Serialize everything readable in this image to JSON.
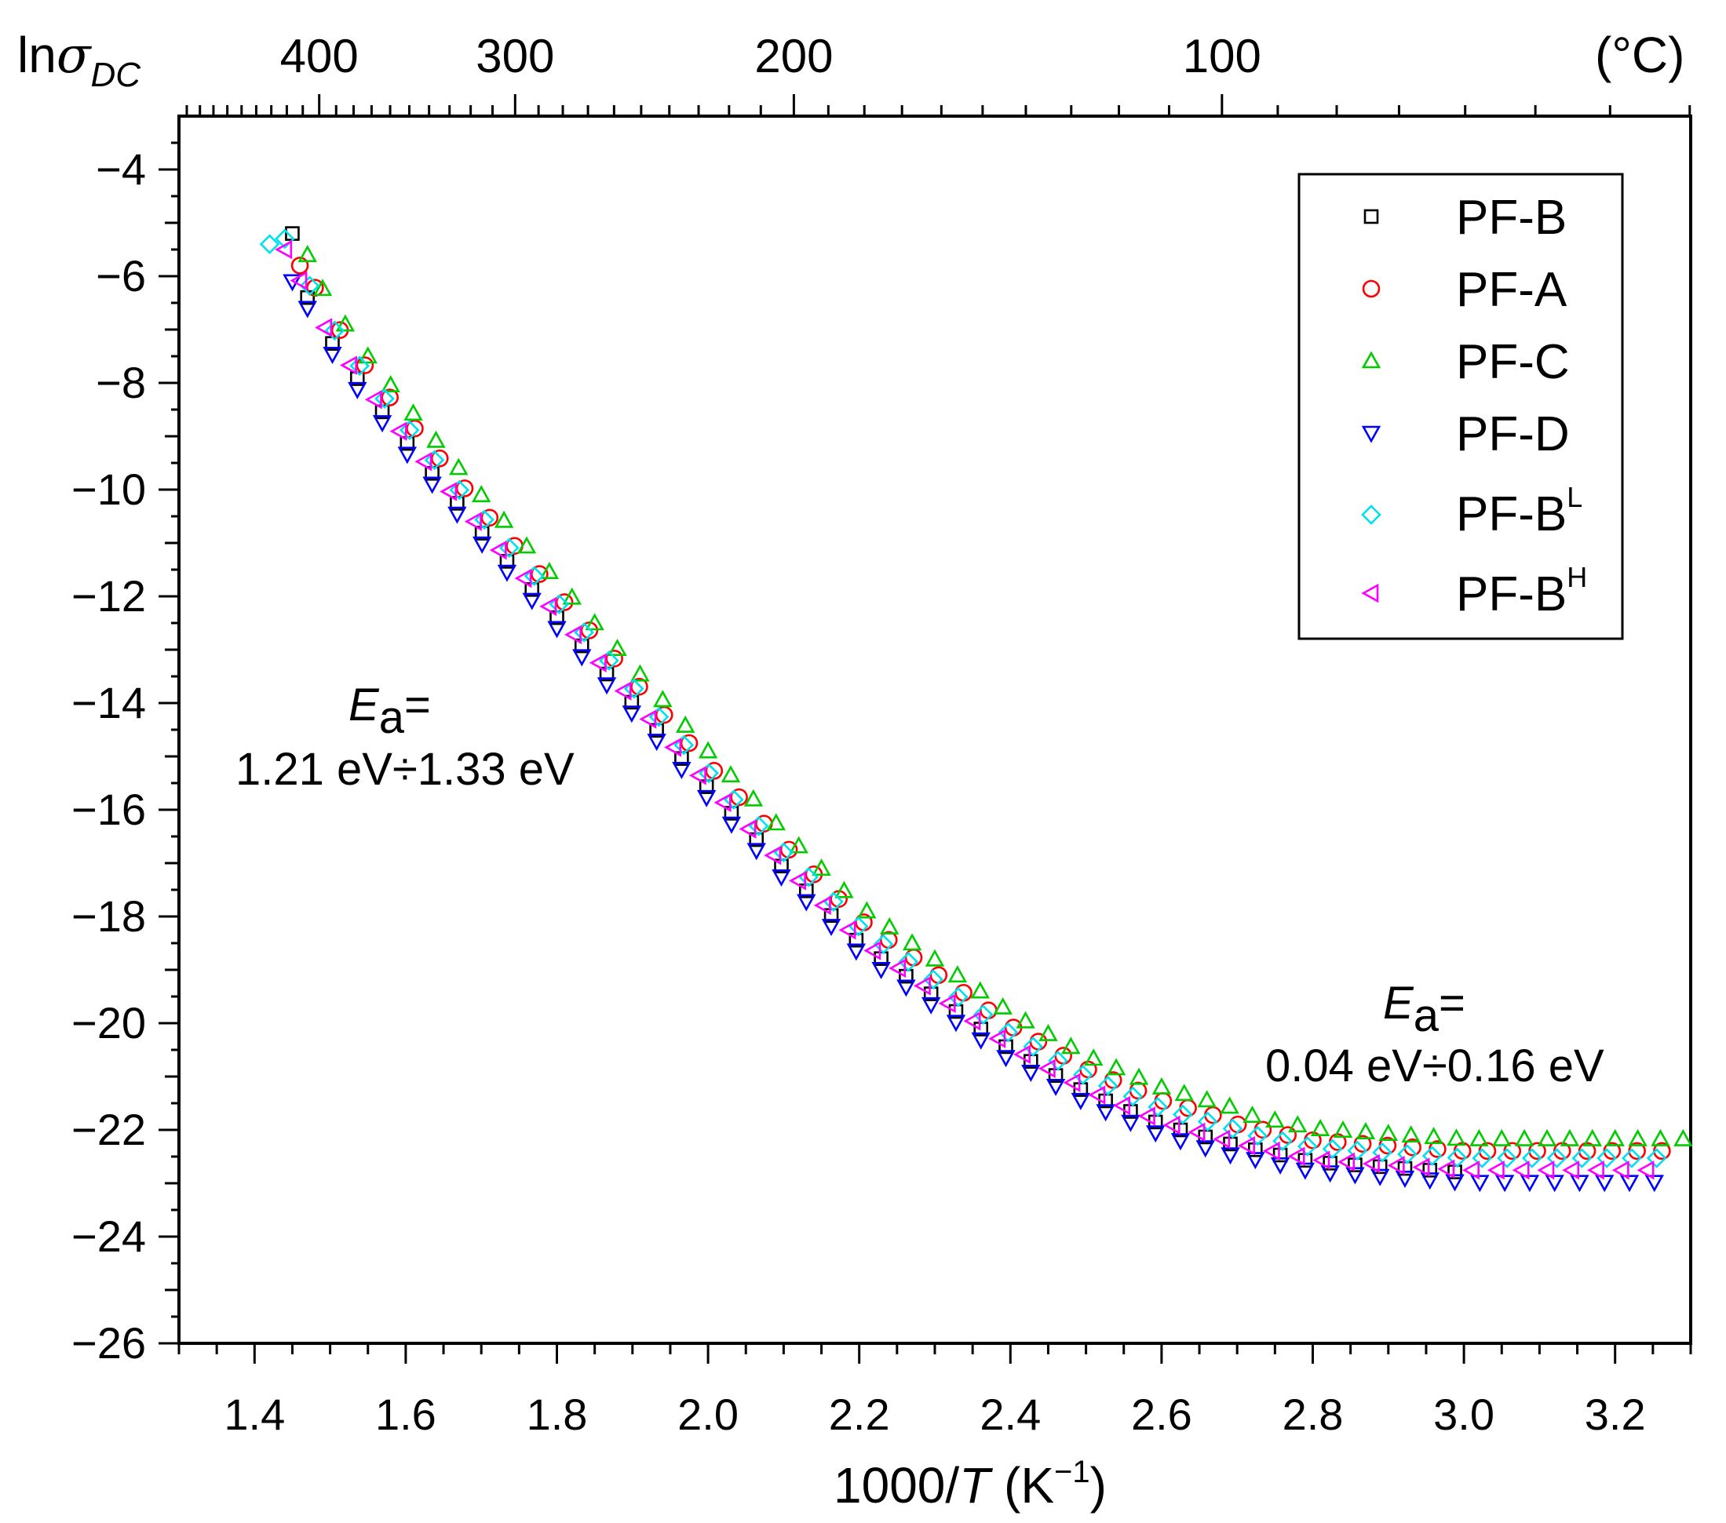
{
  "chart_data": {
    "type": "scatter",
    "title": "",
    "xlabel": "1000/T (K⁻¹)",
    "ylabel": "lnσDC",
    "ylabel_main": "ln",
    "ylabel_sigma": "σ",
    "ylabel_sub": "DC",
    "xlabel_pre": "1000/",
    "xlabel_T": "T",
    "xlabel_post": " (K",
    "xlabel_sup": "−1",
    "xlabel_close": ")",
    "xlim": [
      1.3,
      3.3
    ],
    "ylim": [
      -26,
      -3
    ],
    "x_ticks": [
      1.4,
      1.6,
      1.8,
      2.0,
      2.2,
      2.4,
      2.6,
      2.8,
      3.0,
      3.2
    ],
    "x_tick_labels": [
      "1.4",
      "1.6",
      "1.8",
      "2.0",
      "2.2",
      "2.4",
      "2.6",
      "2.8",
      "3.0",
      "3.2"
    ],
    "y_ticks": [
      -4,
      -6,
      -8,
      -10,
      -12,
      -14,
      -16,
      -18,
      -20,
      -22,
      -24,
      -26
    ],
    "y_tick_labels": [
      "−4",
      "−6",
      "−8",
      "−10",
      "−12",
      "−14",
      "−16",
      "−18",
      "−20",
      "−22",
      "−24",
      "−26"
    ],
    "top_axis": {
      "unit_label": "(°C)",
      "ticks_celsius": [
        400,
        300,
        200,
        100
      ],
      "tick_labels": [
        "400",
        "300",
        "200",
        "100"
      ]
    },
    "legend": {
      "position": "top-right",
      "entries": [
        {
          "name": "PF-B",
          "base": "PF-B",
          "sup": "",
          "marker": "square",
          "color": "#000000"
        },
        {
          "name": "PF-A",
          "base": "PF-A",
          "sup": "",
          "marker": "circle",
          "color": "#ff0000"
        },
        {
          "name": "PF-C",
          "base": "PF-C",
          "sup": "",
          "marker": "triangle-up",
          "color": "#00cc00"
        },
        {
          "name": "PF-D",
          "base": "PF-D",
          "sup": "",
          "marker": "triangle-down",
          "color": "#0000ff"
        },
        {
          "name": "PF-BL",
          "base": "PF-B",
          "sup": "L",
          "marker": "diamond",
          "color": "#00e0f0"
        },
        {
          "name": "PF-BH",
          "base": "PF-B",
          "sup": "H",
          "marker": "triangle-left",
          "color": "#ff00ff"
        }
      ]
    },
    "annotations": [
      {
        "id": "high",
        "symbol": "E",
        "sub": "a",
        "eq": "=",
        "range": "1.21 eV÷1.33 eV"
      },
      {
        "id": "low",
        "symbol": "E",
        "sub": "a",
        "eq": "=",
        "range": "0.04 eV÷0.16 eV"
      }
    ],
    "curve_profile": {
      "x": [
        1.44,
        1.47,
        1.5,
        1.55,
        1.6,
        1.7,
        1.8,
        1.9,
        2.0,
        2.1,
        2.2,
        2.3,
        2.35,
        2.4,
        2.5,
        2.6,
        2.7,
        2.8,
        2.9,
        3.0,
        3.1,
        3.2,
        3.3
      ],
      "y": [
        -5.6,
        -6.4,
        -7.2,
        -8.2,
        -9.1,
        -10.8,
        -12.4,
        -14.0,
        -15.6,
        -17.1,
        -18.5,
        -19.5,
        -20.0,
        -20.5,
        -21.3,
        -21.9,
        -22.3,
        -22.6,
        -22.7,
        -22.8,
        -22.8,
        -22.8,
        -22.8
      ]
    },
    "series": [
      {
        "name": "PF-B",
        "marker": "square",
        "color": "#000000",
        "x_start": 1.47,
        "x_end": 3.0,
        "offset": 0.0,
        "step": 0.033,
        "first_y": -5.2
      },
      {
        "name": "PF-A",
        "marker": "circle",
        "color": "#ff0000",
        "x_start": 1.48,
        "x_end": 3.27,
        "offset": 0.45,
        "step": 0.033,
        "first_y": -5.8
      },
      {
        "name": "PF-C",
        "marker": "triangle-up",
        "color": "#00cc00",
        "x_start": 1.49,
        "x_end": 3.3,
        "offset": 0.7,
        "step": 0.03,
        "first_y": -5.6
      },
      {
        "name": "PF-D",
        "marker": "triangle-down",
        "color": "#0000ff",
        "x_start": 1.47,
        "x_end": 3.27,
        "offset": -0.2,
        "step": 0.033,
        "first_y": -6.1
      },
      {
        "name": "PF-BL",
        "marker": "diamond",
        "color": "#00e0f0",
        "x_start": 1.44,
        "x_end": 3.26,
        "offset": 0.3,
        "step": 0.033,
        "first_y": -5.4
      },
      {
        "name": "PF-BH",
        "marker": "triangle-left",
        "color": "#ff00ff",
        "x_start": 1.46,
        "x_end": 3.27,
        "offset": 0.05,
        "step": 0.033,
        "first_y": -5.5
      }
    ]
  }
}
